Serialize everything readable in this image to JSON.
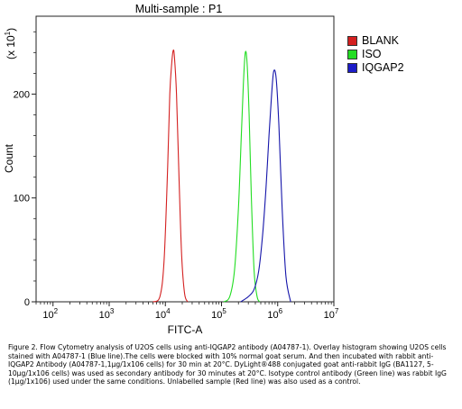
{
  "chart_data": {
    "type": "line",
    "title": "Multi-sample : P1",
    "xlabel": "FITC-A",
    "ylabel": "Count",
    "y_multiplier_label": "(x 10",
    "y_multiplier_exp": "1",
    "y_multiplier_close": ")",
    "x_scale": "log",
    "xlim": [
      50,
      10000000
    ],
    "ylim": [
      0,
      275
    ],
    "x_ticks": [
      {
        "value": 100,
        "base": "10",
        "exp": "2"
      },
      {
        "value": 1000,
        "base": "10",
        "exp": "3"
      },
      {
        "value": 10000,
        "base": "10",
        "exp": "4"
      },
      {
        "value": 100000,
        "base": "10",
        "exp": "5"
      },
      {
        "value": 1000000,
        "base": "10",
        "exp": "6"
      },
      {
        "value": 10000000,
        "base": "10",
        "exp": "7"
      }
    ],
    "y_ticks": [
      0,
      100,
      200
    ],
    "legend_position": "top-right",
    "series": [
      {
        "name": "BLANK",
        "color": "#d42020",
        "swatch": "#d42020",
        "x": [
          6000,
          8000,
          9500,
          11000,
          12000,
          13000,
          13800,
          14500,
          15800,
          17500,
          19500,
          22000,
          25000
        ],
        "y": [
          0,
          5,
          40,
          130,
          200,
          230,
          242,
          236,
          200,
          120,
          45,
          8,
          0
        ]
      },
      {
        "name": "ISO",
        "color": "#22dd22",
        "swatch": "#22dd22",
        "x": [
          110000,
          140000,
          170000,
          200000,
          225000,
          245000,
          265000,
          285000,
          310000,
          340000,
          380000,
          430000,
          480000
        ],
        "y": [
          0,
          5,
          30,
          90,
          160,
          210,
          240,
          230,
          180,
          100,
          30,
          5,
          0
        ]
      },
      {
        "name": "IQGAP2",
        "color": "#1515aa",
        "swatch": "#1c1cc8",
        "x": [
          220000,
          300000,
          380000,
          460000,
          540000,
          620000,
          700000,
          780000,
          850000,
          940000,
          1050000,
          1200000,
          1400000,
          1700000
        ],
        "y": [
          0,
          5,
          12,
          30,
          65,
          110,
          160,
          200,
          222,
          215,
          170,
          90,
          25,
          0
        ]
      }
    ]
  },
  "caption": "Figure 2. Flow Cytometry analysis of U2OS cells using anti-IQGAP2 antibody (A04787-1).  Overlay histogram showing U2OS cells stained with A04787-1 (Blue line).The cells were blocked with 10% normal goat serum. And then incubated with rabbit anti-IQGAP2 Antibody (A04787-1,1µg/1x106 cells) for 30 min at 20°C. DyLight®488 conjugated goat anti-rabbit IgG (BA1127, 5-10µg/1x106 cells) was used as secondary antibody for 30 minutes at 20°C. Isotype control antibody (Green line) was rabbit IgG (1µg/1x106) used under the same conditions. Unlabelled sample (Red line) was also used as a control."
}
